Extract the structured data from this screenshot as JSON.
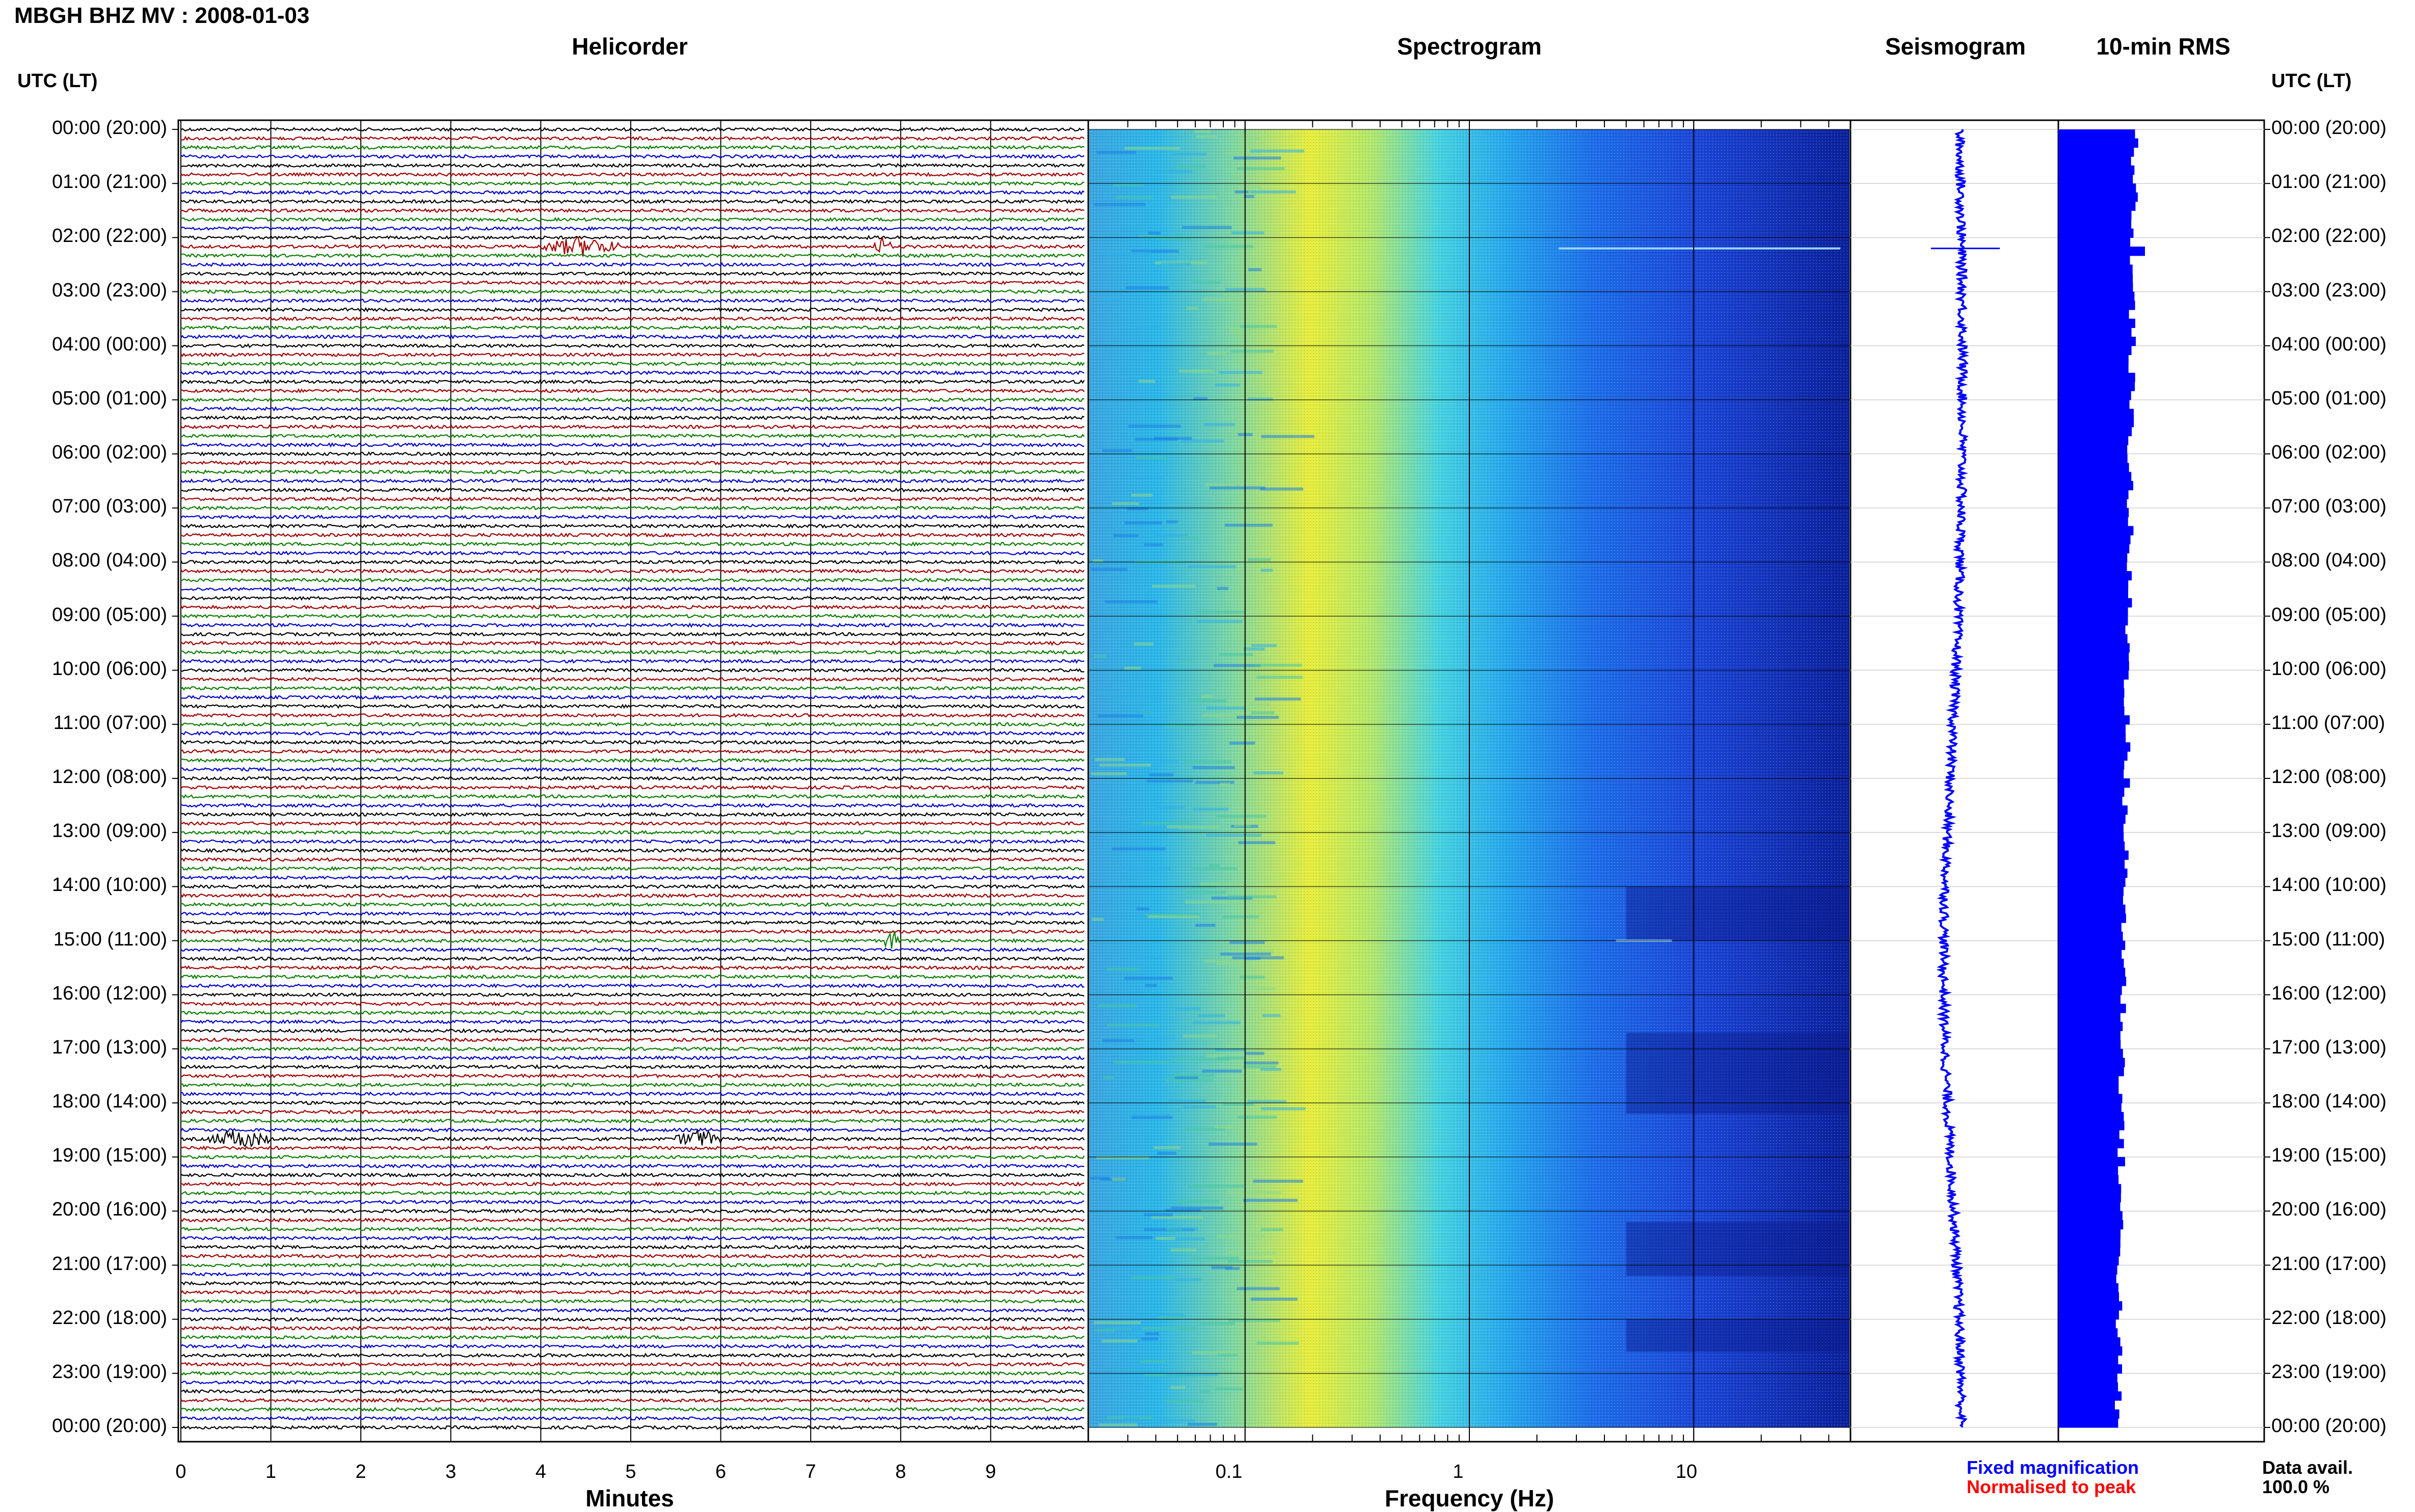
{
  "header": {
    "title": "MBGH BHZ MV : 2008-01-03"
  },
  "panels": {
    "helicorder": "Helicorder",
    "spectrogram": "Spectrogram",
    "seismogram": "Seismogram",
    "rms": "10-min RMS"
  },
  "time_axis": {
    "label": "UTC (LT)",
    "ticks": [
      "00:00 (20:00)",
      "01:00 (21:00)",
      "02:00 (22:00)",
      "03:00 (23:00)",
      "04:00 (00:00)",
      "05:00 (01:00)",
      "06:00 (02:00)",
      "07:00 (03:00)",
      "08:00 (04:00)",
      "09:00 (05:00)",
      "10:00 (06:00)",
      "11:00 (07:00)",
      "12:00 (08:00)",
      "13:00 (09:00)",
      "14:00 (10:00)",
      "15:00 (11:00)",
      "16:00 (12:00)",
      "17:00 (13:00)",
      "18:00 (14:00)",
      "19:00 (15:00)",
      "20:00 (16:00)",
      "21:00 (17:00)",
      "22:00 (18:00)",
      "23:00 (19:00)",
      "00:00 (20:00)"
    ]
  },
  "helicorder_axis": {
    "label": "Minutes",
    "ticks": [
      "0",
      "1",
      "2",
      "3",
      "4",
      "5",
      "6",
      "7",
      "8",
      "9"
    ]
  },
  "spectrogram_axis": {
    "label": "Frequency (Hz)",
    "ticks": [
      "0.1",
      "1",
      "10"
    ]
  },
  "legend": {
    "fixed": "Fixed magnification",
    "normalised": "Normalised to peak",
    "avail_label": "Data avail.",
    "avail_value": "100.0 %"
  },
  "colors": {
    "trace_cycle": [
      "#000000",
      "#a00000",
      "#0a7d00",
      "#0000cc"
    ],
    "seismogram": "#0000ff",
    "rms": "#0000ff",
    "legend_fixed": "#0000ff",
    "legend_normalised": "#ff0000"
  },
  "chart_data": [
    {
      "type": "line",
      "title": "Helicorder",
      "xlabel": "Minutes",
      "x_ticks": [
        0,
        1,
        2,
        3,
        4,
        5,
        6,
        7,
        8,
        9
      ],
      "xlim": [
        0,
        10
      ],
      "rows": 144,
      "row_span_minutes": 10,
      "events": [
        {
          "time": "02:10",
          "minute_start": 4.0,
          "minute_end": 4.9
        },
        {
          "time": "02:10",
          "minute_start": 7.7,
          "minute_end": 7.9
        },
        {
          "time": "15:00",
          "minute_start": 7.8,
          "minute_end": 8.0
        },
        {
          "time": "18:40",
          "minute_start": 0.3,
          "minute_end": 1.0
        },
        {
          "time": "18:40",
          "minute_start": 5.5,
          "minute_end": 6.0
        }
      ]
    },
    {
      "type": "heatmap",
      "title": "Spectrogram",
      "xlabel": "Frequency (Hz)",
      "x_scale": "log",
      "x_ticks": [
        0.1,
        1,
        10
      ],
      "xlim": [
        0.02,
        50
      ]
    },
    {
      "type": "line",
      "title": "Seismogram",
      "spike_time": "02:10"
    },
    {
      "type": "bar",
      "title": "10-min RMS",
      "orientation": "horizontal",
      "intervals": 144
    }
  ]
}
